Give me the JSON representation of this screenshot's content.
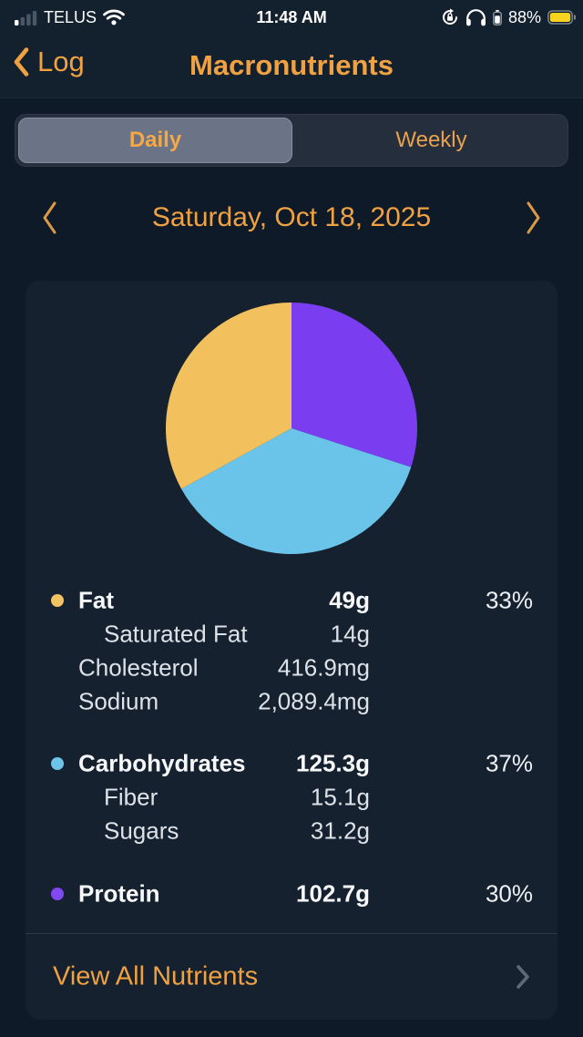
{
  "status_bar": {
    "carrier": "TELUS",
    "time": "11:48 AM",
    "battery_percent": "88%",
    "icons": [
      "signal-icon",
      "wifi-icon",
      "rotation-lock-icon",
      "headphones-icon",
      "headphone-battery-icon",
      "battery-icon"
    ]
  },
  "header": {
    "back_label": "Log",
    "title": "Macronutrients"
  },
  "tabs": {
    "items": [
      {
        "label": "Daily",
        "selected": true
      },
      {
        "label": "Weekly",
        "selected": false
      }
    ]
  },
  "date_nav": {
    "label": "Saturday, Oct 18, 2025"
  },
  "chart_data": {
    "type": "pie",
    "start_angle_deg": 0,
    "direction": "clockwise",
    "legend_position": "below",
    "slices": [
      {
        "label": "Protein",
        "percent": 30,
        "color": "#7a3ef0"
      },
      {
        "label": "Carbohydrates",
        "percent": 37,
        "color": "#6ac4e9"
      },
      {
        "label": "Fat",
        "percent": 33,
        "color": "#f2c05c"
      }
    ]
  },
  "legend": {
    "sections": [
      {
        "label": "Fat",
        "value": "49g",
        "percent": "33%",
        "color": "#f3c262",
        "rows": [
          {
            "label": "Saturated Fat",
            "value": "14g"
          },
          {
            "label": "Cholesterol",
            "value": "416.9mg"
          },
          {
            "label": "Sodium",
            "value": "2,089.4mg"
          }
        ]
      },
      {
        "label": "Carbohydrates",
        "value": "125.3g",
        "percent": "37%",
        "color": "#6dc6ea",
        "rows": [
          {
            "label": "Fiber",
            "value": "15.1g"
          },
          {
            "label": "Sugars",
            "value": "31.2g"
          }
        ]
      },
      {
        "label": "Protein",
        "value": "102.7g",
        "percent": "30%",
        "color": "#8147f2",
        "rows": []
      }
    ]
  },
  "footer": {
    "view_all": "View All Nutrients"
  },
  "colors": {
    "accent": "#f0a243",
    "page_bg": "#0e1a28",
    "navbar_bg": "#13202e",
    "card_bg": "#15212f",
    "segment_selected_bg": "#6b7486",
    "battery_low_power": "#f7d21e"
  }
}
